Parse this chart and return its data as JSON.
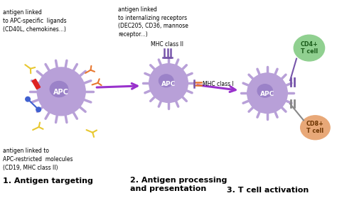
{
  "bg_color": "#ffffff",
  "apc_color": "#b8a0d8",
  "apc_nucleus_color": "#9b82c8",
  "cd4_color": "#90d090",
  "cd8_color": "#e8a878",
  "arrow_color": "#9932CC",
  "text_color": "#000000",
  "labels": {
    "top_left": "antigen linked\nto APC-specific  ligands\n(CD40L, chemokines...)",
    "top_right": "antigen linked\nto internalizing receptors\n(DEC205, CD36, mannose\nreceptor...)",
    "bottom_left": "antigen linked to\nAPC-restricted  molecules\n(CD19, MHC class II)",
    "step1": "1. Antigen targeting",
    "mhc2": "MHC class II",
    "mhc1": "MHC class I",
    "step2": "2. Antigen processing\nand presentation",
    "cd4": "CD4+\nT cell",
    "cd8": "CD8+\nT cell",
    "step3": "3. T cell activation",
    "apc": "APC"
  }
}
